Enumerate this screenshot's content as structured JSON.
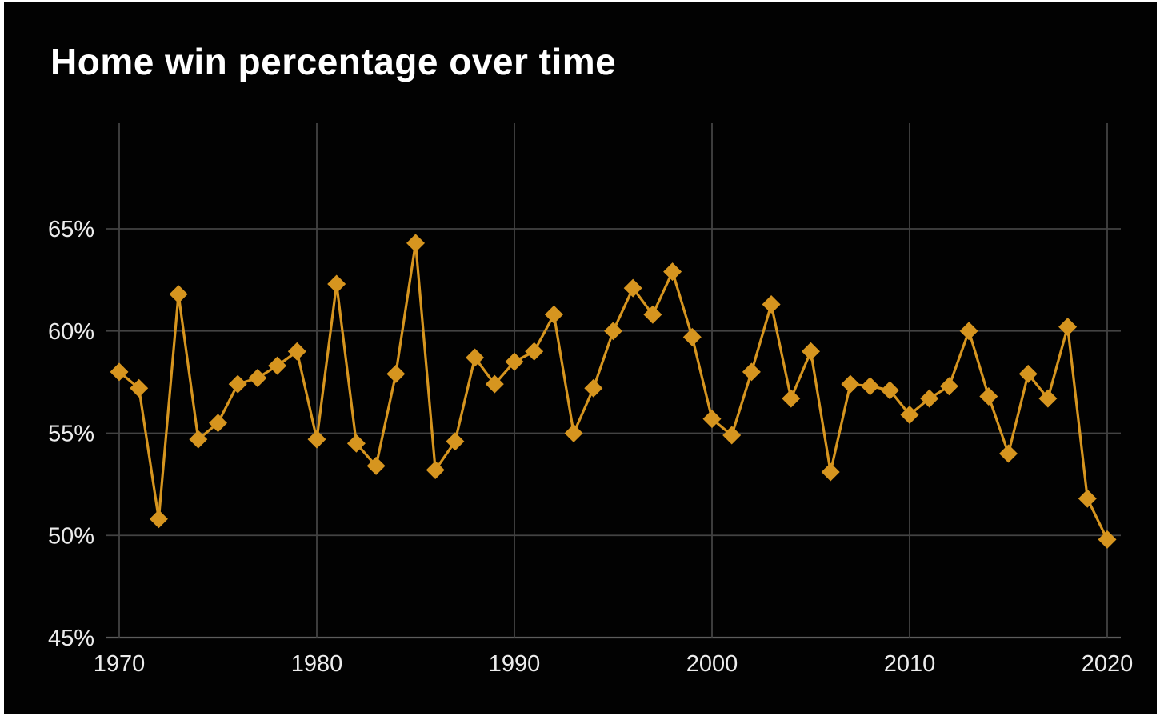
{
  "page": {
    "background_color": "#ffffff",
    "canvas_color": "#020202"
  },
  "chart_data": {
    "type": "line",
    "title": "Home win percentage over time",
    "xlabel": "",
    "ylabel": "",
    "x": [
      1970,
      1971,
      1972,
      1973,
      1974,
      1975,
      1976,
      1977,
      1978,
      1979,
      1980,
      1981,
      1982,
      1983,
      1984,
      1985,
      1986,
      1987,
      1988,
      1989,
      1990,
      1991,
      1992,
      1993,
      1994,
      1995,
      1996,
      1997,
      1998,
      1999,
      2000,
      2001,
      2002,
      2003,
      2004,
      2005,
      2006,
      2007,
      2008,
      2009,
      2010,
      2011,
      2012,
      2013,
      2014,
      2015,
      2016,
      2017,
      2018,
      2019,
      2020
    ],
    "series": [
      {
        "name": "Home win percentage",
        "values": [
          58.0,
          57.2,
          50.8,
          61.8,
          54.7,
          55.5,
          57.4,
          57.7,
          58.3,
          59.0,
          54.7,
          62.3,
          54.5,
          53.4,
          57.9,
          64.3,
          53.2,
          54.6,
          58.7,
          57.4,
          58.5,
          59.0,
          60.8,
          55.0,
          57.2,
          60.0,
          62.1,
          60.8,
          62.9,
          59.7,
          55.7,
          54.9,
          58.0,
          61.3,
          56.7,
          59.0,
          53.1,
          57.4,
          57.3,
          57.1,
          55.9,
          56.7,
          57.3,
          60.0,
          56.8,
          54.0,
          57.9,
          56.7,
          60.2,
          51.8,
          49.8
        ]
      }
    ],
    "x_ticks": [
      1970,
      1980,
      1990,
      2000,
      2010,
      2020
    ],
    "x_tick_labels": [
      "1970",
      "1980",
      "1990",
      "2000",
      "2010",
      "2020"
    ],
    "y_ticks": [
      45,
      50,
      55,
      60,
      65
    ],
    "y_tick_labels": [
      "45%",
      "50%",
      "55%",
      "60%",
      "65%"
    ],
    "xlim": [
      1969.3,
      2020.7
    ],
    "ylim": [
      45,
      70.2
    ],
    "grid": "on",
    "legend_position": "none",
    "marker": "diamond",
    "colors": {
      "line": "#D6951F",
      "marker": "#D6951F",
      "gridline": "#434343",
      "axis_spine": "#5c5c5c",
      "tick_label": "#ececec",
      "title_text": "#ffffff"
    }
  }
}
